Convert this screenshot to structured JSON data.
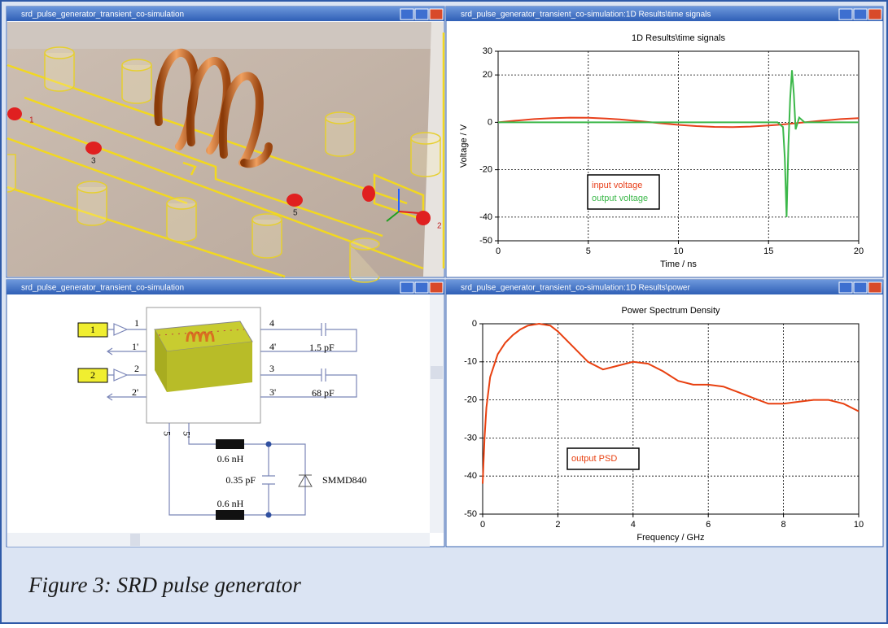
{
  "windows": [
    {
      "title": "srd_pulse_generator_transient_co-simulation"
    },
    {
      "title": "srd_pulse_generator_transient_co-simulation:1D Results\\time signals"
    },
    {
      "title": "srd_pulse_generator_transient_co-simulation"
    },
    {
      "title": "srd_pulse_generator_transient_co-simulation:1D Results\\power"
    }
  ],
  "view_3d": {
    "port_labels": [
      "1",
      "3",
      "5",
      "2"
    ]
  },
  "chart_data": [
    {
      "type": "line",
      "title": "1D Results\\time signals",
      "x_label": "Time / ns",
      "y_label": "Voltage / V",
      "x": [
        0,
        1,
        2,
        3,
        4,
        5,
        6,
        7,
        8,
        9,
        10,
        11,
        12,
        13,
        14,
        15,
        15.5,
        15.8,
        15.9,
        16,
        16.1,
        16.2,
        16.3,
        16.4,
        16.5,
        16.7,
        17,
        18,
        19,
        20
      ],
      "series": [
        {
          "name": "input voltage",
          "color": "#e8401c",
          "values": [
            0,
            0.72,
            1.35,
            1.79,
            1.99,
            1.92,
            1.6,
            1.08,
            0.37,
            -0.37,
            -1.08,
            -1.6,
            -1.92,
            -1.99,
            -1.79,
            -1.35,
            -1.06,
            -0.87,
            -0.81,
            -0.72,
            -0.65,
            -0.58,
            -0.51,
            -0.44,
            -0.37,
            -0.22,
            0,
            0.72,
            1.35,
            1.79
          ]
        },
        {
          "name": "output voltage",
          "color": "#3cb84a",
          "values": [
            0,
            0,
            0,
            0,
            0,
            0,
            0,
            0,
            0,
            0,
            0,
            0,
            0,
            0,
            0,
            0,
            0,
            -2,
            -15,
            -40,
            -10,
            10,
            22,
            12,
            -3,
            2,
            0,
            0,
            0,
            0
          ]
        }
      ],
      "xlim": [
        0,
        20
      ],
      "xticks": [
        0,
        5,
        10,
        15,
        20
      ],
      "ylim": [
        -50,
        30
      ],
      "yticks": [
        -50,
        -40,
        -20,
        0,
        20,
        30
      ],
      "grid": true
    },
    {
      "type": "line",
      "title": "Power Spectrum Density",
      "x_label": "Frequency / GHz",
      "x": [
        0,
        0.05,
        0.1,
        0.2,
        0.4,
        0.6,
        0.8,
        1,
        1.2,
        1.5,
        1.8,
        2,
        2.4,
        2.8,
        3.2,
        3.6,
        4,
        4.4,
        4.8,
        5.2,
        5.6,
        6,
        6.4,
        6.8,
        7.2,
        7.6,
        8,
        8.4,
        8.8,
        9.2,
        9.6,
        10
      ],
      "series": [
        {
          "name": "output PSD",
          "color": "#e84010",
          "values": [
            -42,
            -30,
            -22,
            -14,
            -8,
            -5,
            -3,
            -1.5,
            -0.5,
            0,
            -0.5,
            -2,
            -6,
            -10,
            -12,
            -11,
            -10,
            -10.5,
            -12.5,
            -15,
            -16,
            -16,
            -16.5,
            -18,
            -19.5,
            -21,
            -21,
            -20.5,
            -20,
            -20,
            -21,
            -23
          ]
        }
      ],
      "xlim": [
        0,
        10
      ],
      "xticks": [
        0,
        2,
        4,
        6,
        8,
        10
      ],
      "ylim": [
        -50,
        0
      ],
      "yticks": [
        -50,
        -40,
        -30,
        -20,
        -10,
        0
      ],
      "grid": true
    }
  ],
  "schematic": {
    "sources": [
      "1",
      "2"
    ],
    "ports": [
      "1",
      "1'",
      "2",
      "2'",
      "4",
      "4'",
      "3",
      "3'",
      "5",
      "5'"
    ],
    "components": [
      "1.5 pF",
      "68 pF",
      "0.6 nH",
      "0.35 pF",
      "SMMD840",
      "0.6 nH"
    ]
  },
  "caption": "Figure 3: SRD pulse generator"
}
